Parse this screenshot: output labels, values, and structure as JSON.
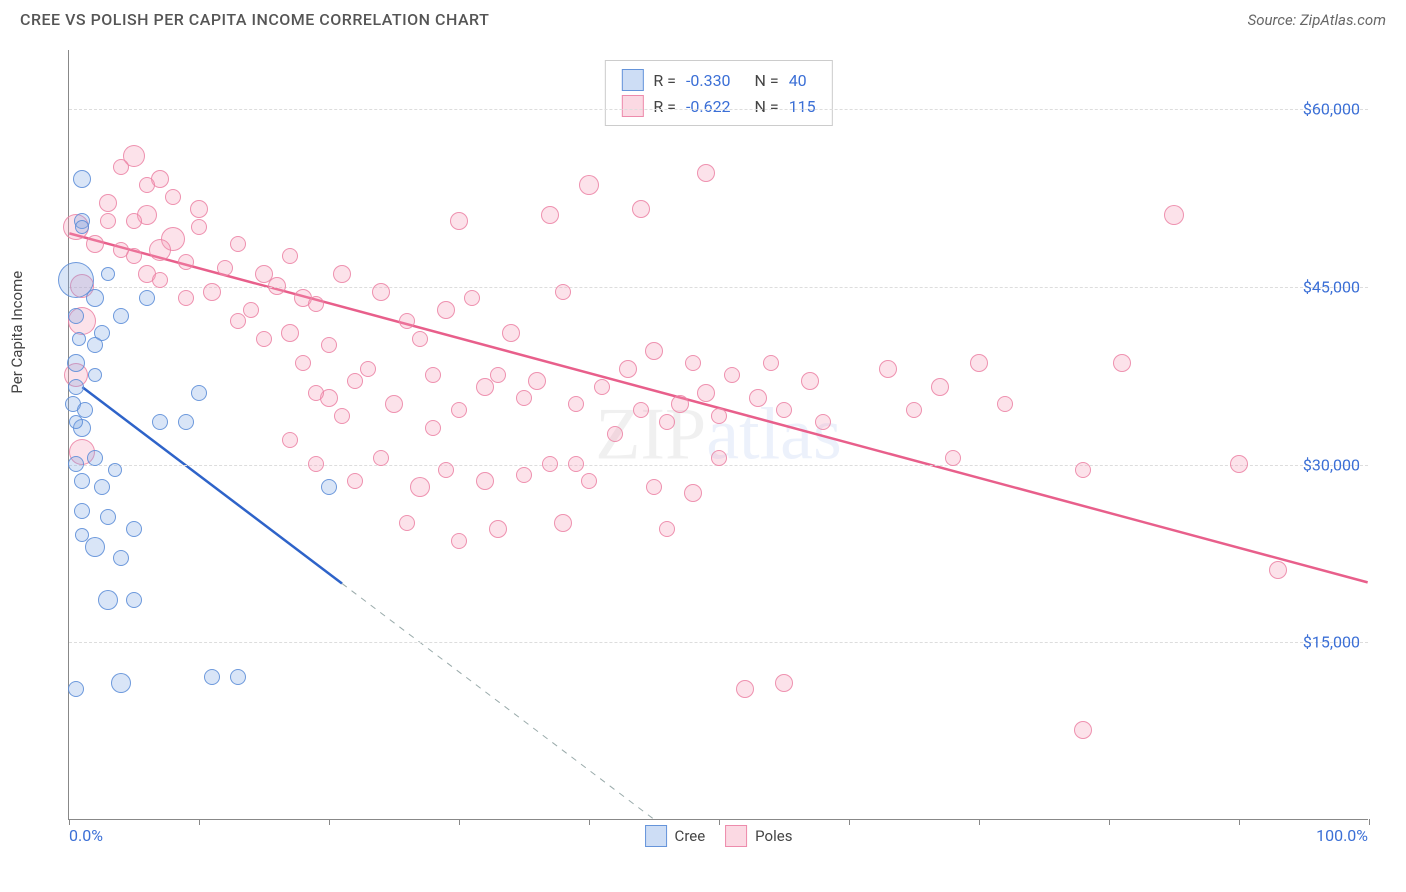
{
  "header": {
    "title": "CREE VS POLISH PER CAPITA INCOME CORRELATION CHART",
    "source": "Source: ZipAtlas.com"
  },
  "watermark": {
    "part1": "ZIP",
    "part2": "atlas"
  },
  "chart": {
    "type": "scatter",
    "ylabel": "Per Capita Income",
    "background_color": "#ffffff",
    "grid_color": "#dddddd",
    "axis_color": "#888888",
    "label_color": "#3b6fd6",
    "label_fontsize": 16,
    "xlim": [
      0,
      100
    ],
    "ylim": [
      0,
      65000
    ],
    "xticks": [
      0,
      10,
      20,
      30,
      40,
      50,
      60,
      70,
      80,
      90,
      100
    ],
    "yticks": [
      15000,
      30000,
      45000,
      60000
    ],
    "ytick_labels": [
      "$15,000",
      "$30,000",
      "$45,000",
      "$60,000"
    ],
    "x_min_label": "0.0%",
    "x_max_label": "100.0%",
    "series": {
      "cree": {
        "label": "Cree",
        "fill_color": "rgba(130,170,230,0.30)",
        "stroke_color": "rgba(90,140,215,0.85)",
        "line_color": "#2e63c9",
        "line_width": 2.5,
        "R": "-0.330",
        "N": "40",
        "trend": {
          "x1": 1,
          "y1": 36500,
          "x2": 45,
          "y2": 0,
          "x_solid_end": 21
        },
        "points": [
          {
            "x": 1,
            "y": 54000,
            "r": 9
          },
          {
            "x": 1,
            "y": 50500,
            "r": 8
          },
          {
            "x": 0.5,
            "y": 45500,
            "r": 18
          },
          {
            "x": 2,
            "y": 44000,
            "r": 9
          },
          {
            "x": 2.5,
            "y": 41000,
            "r": 8
          },
          {
            "x": 0.5,
            "y": 42500,
            "r": 8
          },
          {
            "x": 2,
            "y": 40000,
            "r": 8
          },
          {
            "x": 0.5,
            "y": 38500,
            "r": 9
          },
          {
            "x": 0.5,
            "y": 36500,
            "r": 8
          },
          {
            "x": 0.3,
            "y": 35000,
            "r": 8
          },
          {
            "x": 1.2,
            "y": 34500,
            "r": 8
          },
          {
            "x": 1,
            "y": 33000,
            "r": 9
          },
          {
            "x": 2,
            "y": 30500,
            "r": 8
          },
          {
            "x": 0.5,
            "y": 30000,
            "r": 8
          },
          {
            "x": 1,
            "y": 28500,
            "r": 8
          },
          {
            "x": 2.5,
            "y": 28000,
            "r": 8
          },
          {
            "x": 1,
            "y": 26000,
            "r": 8
          },
          {
            "x": 3,
            "y": 25500,
            "r": 8
          },
          {
            "x": 5,
            "y": 24500,
            "r": 8
          },
          {
            "x": 2,
            "y": 23000,
            "r": 10
          },
          {
            "x": 4,
            "y": 22000,
            "r": 8
          },
          {
            "x": 0.5,
            "y": 11000,
            "r": 8
          },
          {
            "x": 3,
            "y": 18500,
            "r": 10
          },
          {
            "x": 5,
            "y": 18500,
            "r": 8
          },
          {
            "x": 10,
            "y": 36000,
            "r": 8
          },
          {
            "x": 9,
            "y": 33500,
            "r": 8
          },
          {
            "x": 6,
            "y": 44000,
            "r": 8
          },
          {
            "x": 4,
            "y": 42500,
            "r": 8
          },
          {
            "x": 20,
            "y": 28000,
            "r": 8
          },
          {
            "x": 11,
            "y": 12000,
            "r": 8
          },
          {
            "x": 13,
            "y": 12000,
            "r": 8
          },
          {
            "x": 1,
            "y": 50000,
            "r": 7
          },
          {
            "x": 3,
            "y": 46000,
            "r": 7
          },
          {
            "x": 2,
            "y": 37500,
            "r": 7
          },
          {
            "x": 1,
            "y": 24000,
            "r": 7
          },
          {
            "x": 4,
            "y": 11500,
            "r": 10
          },
          {
            "x": 0.8,
            "y": 40500,
            "r": 7
          },
          {
            "x": 0.5,
            "y": 33500,
            "r": 7
          },
          {
            "x": 7,
            "y": 33500,
            "r": 8
          },
          {
            "x": 3.5,
            "y": 29500,
            "r": 7
          }
        ]
      },
      "poles": {
        "label": "Poles",
        "fill_color": "rgba(245,160,185,0.30)",
        "stroke_color": "rgba(235,130,165,0.85)",
        "line_color": "#e85f8b",
        "line_width": 2.5,
        "R": "-0.622",
        "N": "115",
        "trend": {
          "x1": 0,
          "y1": 49500,
          "x2": 100,
          "y2": 20000,
          "x_solid_end": 100
        },
        "points": [
          {
            "x": 0.5,
            "y": 50000,
            "r": 13
          },
          {
            "x": 1,
            "y": 45000,
            "r": 12
          },
          {
            "x": 1,
            "y": 42000,
            "r": 14
          },
          {
            "x": 0.5,
            "y": 37500,
            "r": 12
          },
          {
            "x": 1,
            "y": 31000,
            "r": 13
          },
          {
            "x": 2,
            "y": 48500,
            "r": 9
          },
          {
            "x": 5,
            "y": 56000,
            "r": 11
          },
          {
            "x": 7,
            "y": 54000,
            "r": 9
          },
          {
            "x": 3,
            "y": 52000,
            "r": 9
          },
          {
            "x": 6,
            "y": 51000,
            "r": 10
          },
          {
            "x": 8,
            "y": 49000,
            "r": 12
          },
          {
            "x": 5,
            "y": 50500,
            "r": 8
          },
          {
            "x": 7,
            "y": 48000,
            "r": 11
          },
          {
            "x": 9,
            "y": 47000,
            "r": 8
          },
          {
            "x": 6,
            "y": 46000,
            "r": 9
          },
          {
            "x": 4,
            "y": 48000,
            "r": 8
          },
          {
            "x": 10,
            "y": 51500,
            "r": 9
          },
          {
            "x": 12,
            "y": 46500,
            "r": 8
          },
          {
            "x": 11,
            "y": 44500,
            "r": 9
          },
          {
            "x": 13,
            "y": 48500,
            "r": 8
          },
          {
            "x": 15,
            "y": 46000,
            "r": 9
          },
          {
            "x": 14,
            "y": 43000,
            "r": 8
          },
          {
            "x": 16,
            "y": 45000,
            "r": 9
          },
          {
            "x": 17,
            "y": 47500,
            "r": 8
          },
          {
            "x": 18,
            "y": 44000,
            "r": 9
          },
          {
            "x": 13,
            "y": 42000,
            "r": 8
          },
          {
            "x": 17,
            "y": 41000,
            "r": 9
          },
          {
            "x": 19,
            "y": 43500,
            "r": 8
          },
          {
            "x": 20,
            "y": 40000,
            "r": 8
          },
          {
            "x": 21,
            "y": 46000,
            "r": 9
          },
          {
            "x": 15,
            "y": 40500,
            "r": 8
          },
          {
            "x": 18,
            "y": 38500,
            "r": 8
          },
          {
            "x": 20,
            "y": 35500,
            "r": 9
          },
          {
            "x": 22,
            "y": 37000,
            "r": 8
          },
          {
            "x": 19,
            "y": 36000,
            "r": 8
          },
          {
            "x": 21,
            "y": 34000,
            "r": 8
          },
          {
            "x": 24,
            "y": 44500,
            "r": 9
          },
          {
            "x": 26,
            "y": 42000,
            "r": 8
          },
          {
            "x": 23,
            "y": 38000,
            "r": 8
          },
          {
            "x": 25,
            "y": 35000,
            "r": 9
          },
          {
            "x": 27,
            "y": 40500,
            "r": 8
          },
          {
            "x": 29,
            "y": 43000,
            "r": 9
          },
          {
            "x": 28,
            "y": 37500,
            "r": 8
          },
          {
            "x": 30,
            "y": 50500,
            "r": 9
          },
          {
            "x": 31,
            "y": 44000,
            "r": 8
          },
          {
            "x": 32,
            "y": 36500,
            "r": 9
          },
          {
            "x": 33,
            "y": 37500,
            "r": 8
          },
          {
            "x": 30,
            "y": 34500,
            "r": 8
          },
          {
            "x": 34,
            "y": 41000,
            "r": 9
          },
          {
            "x": 35,
            "y": 35500,
            "r": 8
          },
          {
            "x": 28,
            "y": 33000,
            "r": 8
          },
          {
            "x": 27,
            "y": 28000,
            "r": 10
          },
          {
            "x": 29,
            "y": 29500,
            "r": 8
          },
          {
            "x": 32,
            "y": 28500,
            "r": 9
          },
          {
            "x": 24,
            "y": 30500,
            "r": 8
          },
          {
            "x": 26,
            "y": 25000,
            "r": 8
          },
          {
            "x": 30,
            "y": 23500,
            "r": 8
          },
          {
            "x": 33,
            "y": 24500,
            "r": 9
          },
          {
            "x": 35,
            "y": 29000,
            "r": 8
          },
          {
            "x": 37,
            "y": 51000,
            "r": 9
          },
          {
            "x": 38,
            "y": 44500,
            "r": 8
          },
          {
            "x": 36,
            "y": 37000,
            "r": 9
          },
          {
            "x": 39,
            "y": 35000,
            "r": 8
          },
          {
            "x": 40,
            "y": 28500,
            "r": 8
          },
          {
            "x": 38,
            "y": 25000,
            "r": 9
          },
          {
            "x": 41,
            "y": 36500,
            "r": 8
          },
          {
            "x": 43,
            "y": 38000,
            "r": 9
          },
          {
            "x": 42,
            "y": 32500,
            "r": 8
          },
          {
            "x": 44,
            "y": 34500,
            "r": 8
          },
          {
            "x": 45,
            "y": 39500,
            "r": 9
          },
          {
            "x": 40,
            "y": 53500,
            "r": 10
          },
          {
            "x": 44,
            "y": 51500,
            "r": 9
          },
          {
            "x": 46,
            "y": 33500,
            "r": 8
          },
          {
            "x": 47,
            "y": 35000,
            "r": 9
          },
          {
            "x": 48,
            "y": 38500,
            "r": 8
          },
          {
            "x": 45,
            "y": 28000,
            "r": 8
          },
          {
            "x": 48,
            "y": 27500,
            "r": 9
          },
          {
            "x": 46,
            "y": 24500,
            "r": 8
          },
          {
            "x": 49,
            "y": 36000,
            "r": 9
          },
          {
            "x": 50,
            "y": 34000,
            "r": 8
          },
          {
            "x": 49,
            "y": 54500,
            "r": 9
          },
          {
            "x": 51,
            "y": 37500,
            "r": 8
          },
          {
            "x": 52,
            "y": 11000,
            "r": 9
          },
          {
            "x": 50,
            "y": 30500,
            "r": 8
          },
          {
            "x": 53,
            "y": 35500,
            "r": 9
          },
          {
            "x": 54,
            "y": 38500,
            "r": 8
          },
          {
            "x": 55,
            "y": 34500,
            "r": 8
          },
          {
            "x": 55,
            "y": 11500,
            "r": 9
          },
          {
            "x": 57,
            "y": 37000,
            "r": 9
          },
          {
            "x": 58,
            "y": 33500,
            "r": 8
          },
          {
            "x": 63,
            "y": 38000,
            "r": 9
          },
          {
            "x": 65,
            "y": 34500,
            "r": 8
          },
          {
            "x": 67,
            "y": 36500,
            "r": 9
          },
          {
            "x": 70,
            "y": 38500,
            "r": 9
          },
          {
            "x": 72,
            "y": 35000,
            "r": 8
          },
          {
            "x": 68,
            "y": 30500,
            "r": 8
          },
          {
            "x": 81,
            "y": 38500,
            "r": 9
          },
          {
            "x": 78,
            "y": 29500,
            "r": 8
          },
          {
            "x": 85,
            "y": 51000,
            "r": 10
          },
          {
            "x": 90,
            "y": 30000,
            "r": 9
          },
          {
            "x": 93,
            "y": 21000,
            "r": 9
          },
          {
            "x": 78,
            "y": 7500,
            "r": 9
          },
          {
            "x": 8,
            "y": 52500,
            "r": 8
          },
          {
            "x": 10,
            "y": 50000,
            "r": 8
          },
          {
            "x": 4,
            "y": 55000,
            "r": 8
          },
          {
            "x": 6,
            "y": 53500,
            "r": 8
          },
          {
            "x": 3,
            "y": 50500,
            "r": 8
          },
          {
            "x": 5,
            "y": 47500,
            "r": 8
          },
          {
            "x": 7,
            "y": 45500,
            "r": 8
          },
          {
            "x": 9,
            "y": 44000,
            "r": 8
          },
          {
            "x": 22,
            "y": 28500,
            "r": 8
          },
          {
            "x": 19,
            "y": 30000,
            "r": 8
          },
          {
            "x": 17,
            "y": 32000,
            "r": 8
          },
          {
            "x": 37,
            "y": 30000,
            "r": 8
          },
          {
            "x": 39,
            "y": 30000,
            "r": 8
          }
        ]
      }
    }
  },
  "legend": {
    "stat_label_R": "R =",
    "stat_label_N": "N =",
    "items": [
      "cree",
      "poles"
    ]
  }
}
